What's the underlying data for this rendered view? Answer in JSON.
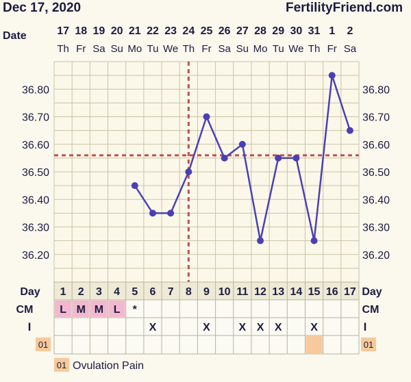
{
  "header": {
    "date": "Dec 17, 2020",
    "site": "FertilityFriend.com"
  },
  "row_labels": {
    "date": "Date",
    "day": "Day",
    "cm": "CM",
    "i": "I"
  },
  "chart_data": {
    "type": "line",
    "title": "",
    "xlabel": "",
    "ylabel": "",
    "dates": [
      "17",
      "18",
      "19",
      "20",
      "21",
      "22",
      "23",
      "24",
      "25",
      "26",
      "27",
      "28",
      "29",
      "30",
      "31",
      "1",
      "2"
    ],
    "weekdays": [
      "Th",
      "Fr",
      "Sa",
      "Su",
      "Mo",
      "Tu",
      "We",
      "Th",
      "Fr",
      "Sa",
      "Su",
      "Mo",
      "Tu",
      "We",
      "Th",
      "Fr",
      "Sa"
    ],
    "days": [
      1,
      2,
      3,
      4,
      5,
      6,
      7,
      8,
      9,
      10,
      11,
      12,
      13,
      14,
      15,
      16,
      17
    ],
    "ylim": [
      36.1,
      36.9
    ],
    "yticks": [
      "36.20",
      "36.30",
      "36.40",
      "36.50",
      "36.60",
      "36.70",
      "36.80"
    ],
    "series": [
      {
        "values": [
          null,
          null,
          null,
          null,
          36.45,
          36.35,
          36.35,
          36.5,
          36.7,
          36.55,
          36.6,
          36.25,
          36.55,
          36.55,
          36.25,
          36.85,
          36.65
        ]
      }
    ],
    "coverline": 36.56,
    "ovulation_day": 8,
    "cm": [
      "L",
      "M",
      "M",
      "L",
      "*",
      "",
      "",
      "",
      "",
      "",
      "",
      "",
      "",
      "",
      "",
      "",
      ""
    ],
    "intercourse": [
      "",
      "",
      "",
      "",
      "",
      "X",
      "",
      "",
      "X",
      "",
      "X",
      "X",
      "X",
      "",
      "X",
      "",
      ""
    ],
    "custom_code": "01",
    "custom_marks": [
      15
    ],
    "legend": [
      {
        "code": "01",
        "label": "Ovulation Pain"
      }
    ],
    "colors": {
      "line": "#4b3fb5",
      "coverline": "#c0504d",
      "grid": "#c9c3a4",
      "period": "#f3b8cf",
      "custom": "#f8c99a",
      "plot_bg": "#fbf8ea"
    }
  }
}
